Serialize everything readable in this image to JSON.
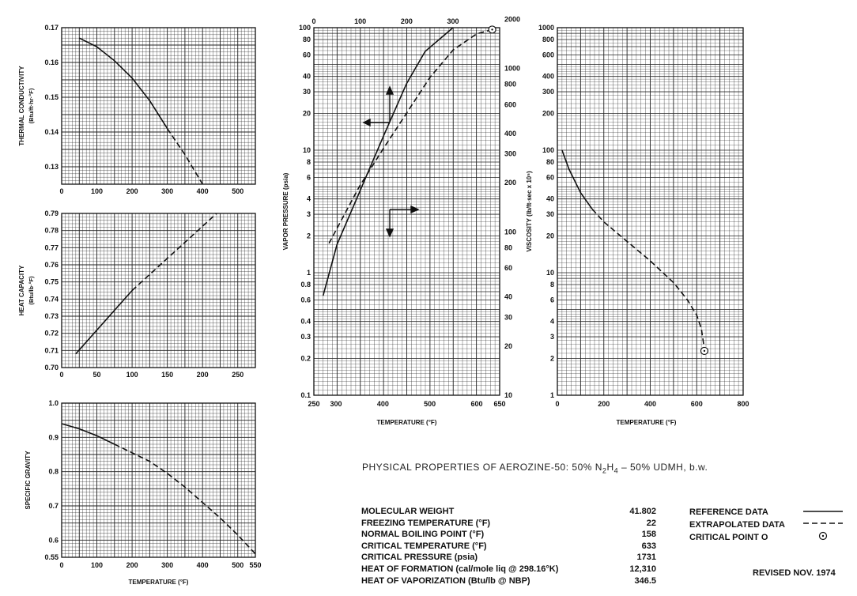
{
  "charts_meta": {},
  "chart_data": [
    {
      "id": "thermal_conductivity",
      "type": "line",
      "ylabel": "THERMAL CONDUCTIVITY",
      "yunit": "(Btu/ft·hr·°F)",
      "xlim": [
        0,
        550
      ],
      "ylim": [
        0.125,
        0.17
      ],
      "xticks": [
        "0",
        "100",
        "200",
        "300",
        "400",
        "500"
      ],
      "yticks": [
        "0.13",
        "0.14",
        "0.15",
        "0.16",
        "0.17"
      ],
      "series": [
        {
          "style": "solid",
          "points": [
            [
              50,
              0.167
            ],
            [
              100,
              0.1645
            ],
            [
              150,
              0.1605
            ],
            [
              200,
              0.1555
            ],
            [
              250,
              0.149
            ],
            [
              300,
              0.141
            ]
          ]
        },
        {
          "style": "dashed",
          "points": [
            [
              300,
              0.141
            ],
            [
              350,
              0.1335
            ],
            [
              400,
              0.125
            ]
          ]
        }
      ]
    },
    {
      "id": "heat_capacity",
      "type": "line",
      "ylabel": "HEAT CAPACITY",
      "yunit": "(Btu/lb·°F)",
      "xlim": [
        0,
        275
      ],
      "ylim": [
        0.7,
        0.79
      ],
      "xticks": [
        "0",
        "50",
        "100",
        "150",
        "200",
        "250"
      ],
      "yticks": [
        "0.70",
        "0.71",
        "0.72",
        "0.73",
        "0.74",
        "0.75",
        "0.76",
        "0.77",
        "0.78",
        "0.79"
      ],
      "series": [
        {
          "style": "solid",
          "points": [
            [
              20,
              0.708
            ],
            [
              100,
              0.745
            ]
          ]
        },
        {
          "style": "dashed",
          "points": [
            [
              100,
              0.745
            ],
            [
              220,
              0.79
            ]
          ]
        }
      ]
    },
    {
      "id": "specific_gravity",
      "type": "line",
      "ylabel": "SPECIFIC GRAVITY",
      "xlabel": "TEMPERATURE (°F)",
      "xlim": [
        0,
        550
      ],
      "ylim": [
        0.55,
        1.0
      ],
      "xticks": [
        "0",
        "100",
        "200",
        "300",
        "400",
        "500",
        "550"
      ],
      "yticks": [
        "0.55",
        "0.6",
        "0.7",
        "0.8",
        "0.9",
        "1.0"
      ],
      "series": [
        {
          "style": "solid",
          "points": [
            [
              0,
              0.94
            ],
            [
              50,
              0.925
            ],
            [
              100,
              0.905
            ],
            [
              150,
              0.88
            ]
          ]
        },
        {
          "style": "dashed",
          "points": [
            [
              150,
              0.88
            ],
            [
              200,
              0.855
            ],
            [
              250,
              0.83
            ],
            [
              300,
              0.795
            ],
            [
              350,
              0.755
            ],
            [
              400,
              0.71
            ],
            [
              450,
              0.665
            ],
            [
              500,
              0.615
            ],
            [
              550,
              0.56
            ]
          ]
        }
      ]
    },
    {
      "id": "vapor_pressure",
      "type": "line",
      "ylabel": "VAPOR PRESSURE (psia)",
      "xlabel": "TEMPERATURE (°F)",
      "yscale": "log",
      "ylim": [
        0.1,
        100
      ],
      "xlim_top": [
        0,
        300
      ],
      "xlim_bottom": [
        250,
        650
      ],
      "right_ylim": [
        10,
        10000
      ],
      "xticks_top": [
        "0",
        "100",
        "200",
        "300"
      ],
      "xticks_bottom": [
        "250",
        "300",
        "400",
        "500",
        "600",
        "650"
      ],
      "yticks": [
        "0.1",
        "0.2",
        "0.3",
        "0.4",
        "0.6",
        "0.8",
        "1",
        "2",
        "3",
        "4",
        "6",
        "8",
        "10",
        "20",
        "30",
        "40",
        "60",
        "80",
        "100"
      ],
      "yticks_right": [
        "10",
        "20",
        "30",
        "40",
        "60",
        "80",
        "100",
        "200",
        "300",
        "400",
        "600",
        "800",
        "1000",
        "2000"
      ],
      "series": [
        {
          "name_axis": "top",
          "style": "solid",
          "points": [
            [
              20,
              0.65
            ],
            [
              50,
              1.7
            ],
            [
              100,
              4.7
            ],
            [
              150,
              13
            ],
            [
              200,
              35
            ],
            [
              240,
              64
            ],
            [
              300,
              100
            ]
          ]
        },
        {
          "name_axis": "bottom",
          "style": "dashed",
          "points": [
            [
              285,
              85
            ],
            [
              350,
              190
            ],
            [
              400,
              320
            ],
            [
              450,
              530
            ],
            [
              500,
              880
            ],
            [
              550,
              1300
            ],
            [
              600,
              1630
            ],
            [
              633,
              1731
            ]
          ]
        }
      ],
      "critical_point": [
        633,
        1731
      ]
    },
    {
      "id": "viscosity",
      "type": "line",
      "ylabel": "VISCOSITY (lb/ft·sec x 10⁵)",
      "xlabel": "TEMPERATURE (°F)",
      "yscale": "log",
      "xlim": [
        0,
        800
      ],
      "ylim": [
        1,
        1000
      ],
      "xticks": [
        "0",
        "200",
        "400",
        "600",
        "800"
      ],
      "yticks": [
        "1",
        "2",
        "3",
        "4",
        "6",
        "8",
        "10",
        "20",
        "30",
        "40",
        "60",
        "80",
        "100",
        "200",
        "300",
        "400",
        "600",
        "800",
        "1000"
      ],
      "series": [
        {
          "style": "solid",
          "points": [
            [
              20,
              100
            ],
            [
              50,
              70
            ],
            [
              100,
              45
            ],
            [
              150,
              33
            ]
          ]
        },
        {
          "style": "dashed",
          "points": [
            [
              150,
              33
            ],
            [
              200,
              26
            ],
            [
              300,
              18
            ],
            [
              400,
              12.5
            ],
            [
              500,
              8.3
            ],
            [
              560,
              6
            ],
            [
              600,
              4.5
            ],
            [
              620,
              3.5
            ],
            [
              630,
              2.6
            ]
          ]
        }
      ],
      "critical_point": [
        633,
        2.3
      ]
    }
  ],
  "title": {
    "main": "PHYSICAL PROPERTIES OF AEROZINE-50: 50% N",
    "sub1": "2",
    "mid": "H",
    "sub2": "4",
    "end": " – 50% UDMH, b.w."
  },
  "properties": [
    {
      "label": "MOLECULAR WEIGHT",
      "value": "41.802"
    },
    {
      "label": "FREEZING TEMPERATURE (°F)",
      "value": "22"
    },
    {
      "label": "NORMAL BOILING POINT (°F)",
      "value": "158"
    },
    {
      "label": "CRITICAL TEMPERATURE (°F)",
      "value": "633"
    },
    {
      "label": "CRITICAL PRESSURE (psia)",
      "value": "1731"
    },
    {
      "label": "HEAT OF FORMATION (cal/mole  liq @ 298.16°K)",
      "value": "12,310"
    },
    {
      "label": "HEAT OF VAPORIZATION (Btu/lb @ NBP)",
      "value": "346.5"
    }
  ],
  "legend": {
    "reference": "REFERENCE DATA",
    "extrapolated": "EXTRAPOLATED DATA",
    "critical": "CRITICAL POINT  O"
  },
  "revised": "REVISED NOV. 1974"
}
